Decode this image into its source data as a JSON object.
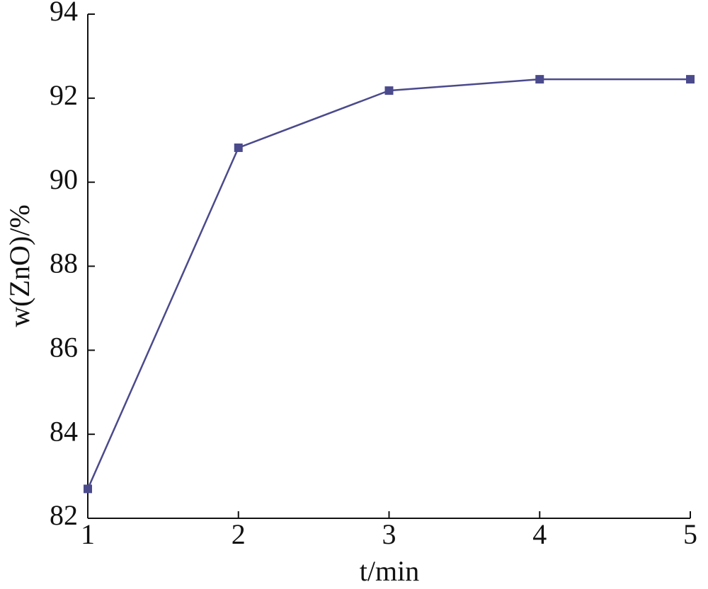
{
  "chart_data": {
    "type": "line",
    "x_label": "t/min",
    "y_label": "w(ZnO)/%",
    "x": [
      1,
      2,
      3,
      4,
      5
    ],
    "series": [
      {
        "name": "w(ZnO)",
        "color": "#4b4a8c",
        "values": [
          82.7,
          90.82,
          92.18,
          92.45,
          92.45
        ]
      }
    ],
    "xlim": [
      1,
      5
    ],
    "xticks": [
      1,
      2,
      3,
      4,
      5
    ],
    "ylim": [
      82,
      94
    ],
    "yticks": [
      82,
      84,
      86,
      88,
      90,
      92,
      94
    ],
    "grid": false,
    "legend": false
  }
}
